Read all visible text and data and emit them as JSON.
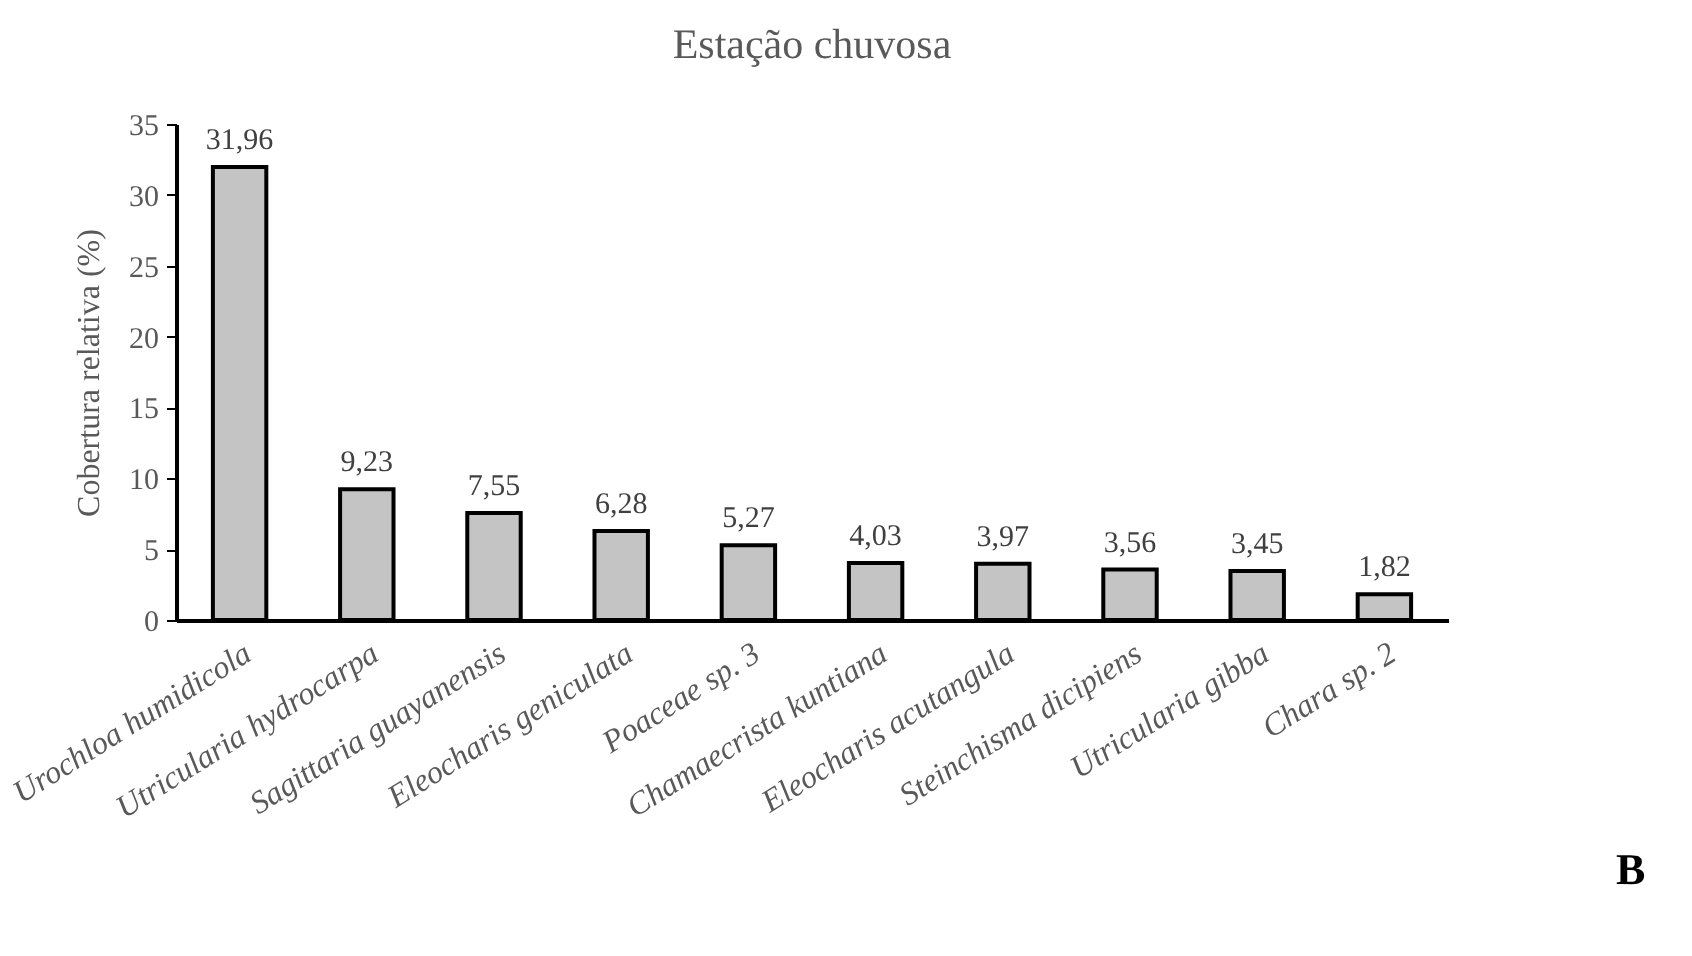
{
  "chart_data": {
    "type": "bar",
    "title": "Estação chuvosa",
    "ylabel": "Cobertura relativa (%)",
    "categories": [
      "Urochloa humidicola",
      "Utricularia hydrocarpa",
      "Sagittaria guayanensis",
      "Eleocharis geniculata",
      "Poaceae sp. 3",
      "Chamaecrista kuntiana",
      "Eleocharis acutangula",
      "Steinchisma dicipiens",
      "Utricularia gibba",
      "Chara sp. 2"
    ],
    "values": [
      31.96,
      9.23,
      7.55,
      6.28,
      5.27,
      4.03,
      3.97,
      3.56,
      3.45,
      1.82
    ],
    "value_labels": [
      "31,96",
      "9,23",
      "7,55",
      "6,28",
      "5,27",
      "4,03",
      "3,97",
      "3,56",
      "3,45",
      "1,82"
    ],
    "color": "#c4c4c4",
    "ylim": [
      0,
      35
    ],
    "yticks": [
      0,
      5,
      10,
      15,
      20,
      25,
      30,
      35
    ],
    "grid": false,
    "annotations": [
      "B"
    ]
  }
}
